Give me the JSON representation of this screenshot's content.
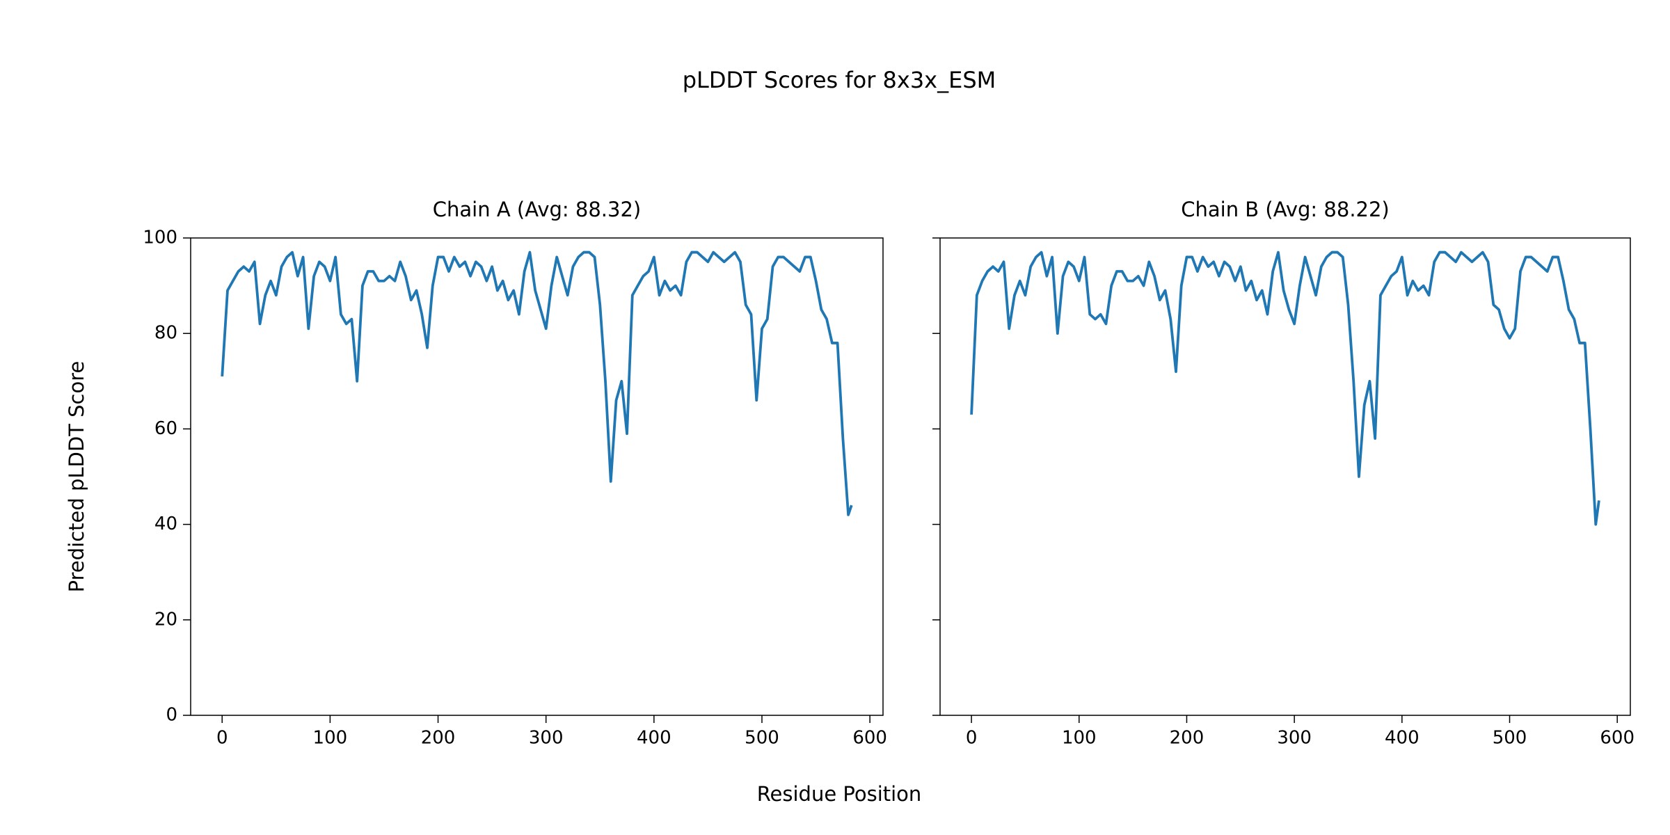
{
  "title": "pLDDT Scores for 8x3x_ESM",
  "xlabel": "Residue Position",
  "ylabel": "Predicted pLDDT Score",
  "chart_data": [
    {
      "type": "line",
      "title": "Chain A (Avg: 88.32)",
      "x": [
        0,
        5,
        10,
        15,
        20,
        25,
        30,
        35,
        40,
        45,
        50,
        55,
        60,
        65,
        70,
        75,
        80,
        85,
        90,
        95,
        100,
        105,
        110,
        115,
        120,
        125,
        130,
        135,
        140,
        145,
        150,
        155,
        160,
        165,
        170,
        175,
        180,
        185,
        190,
        195,
        200,
        205,
        210,
        215,
        220,
        225,
        230,
        235,
        240,
        245,
        250,
        255,
        260,
        265,
        270,
        275,
        280,
        285,
        290,
        295,
        300,
        305,
        310,
        315,
        320,
        325,
        330,
        335,
        340,
        345,
        350,
        355,
        360,
        365,
        370,
        375,
        380,
        385,
        390,
        395,
        400,
        405,
        410,
        415,
        420,
        425,
        430,
        435,
        440,
        445,
        450,
        455,
        460,
        465,
        470,
        475,
        480,
        485,
        490,
        495,
        500,
        505,
        510,
        515,
        520,
        525,
        530,
        535,
        540,
        545,
        550,
        555,
        560,
        565,
        570,
        575,
        580,
        583
      ],
      "series": [
        {
          "color": "#1f77b4",
          "values": [
            71,
            89,
            91,
            93,
            94,
            93,
            95,
            82,
            88,
            91,
            88,
            94,
            96,
            97,
            92,
            96,
            81,
            92,
            95,
            94,
            91,
            96,
            84,
            82,
            83,
            70,
            90,
            93,
            93,
            91,
            91,
            92,
            91,
            95,
            92,
            87,
            89,
            84,
            77,
            90,
            96,
            96,
            93,
            96,
            94,
            95,
            92,
            95,
            94,
            91,
            94,
            89,
            91,
            87,
            89,
            84,
            93,
            97,
            89,
            85,
            81,
            90,
            96,
            92,
            88,
            94,
            96,
            97,
            97,
            96,
            86,
            70,
            49,
            66,
            70,
            59,
            88,
            90,
            92,
            93,
            96,
            88,
            91,
            89,
            90,
            88,
            95,
            97,
            97,
            96,
            95,
            97,
            96,
            95,
            96,
            97,
            95,
            86,
            84,
            66,
            81,
            83,
            94,
            96,
            96,
            95,
            94,
            93,
            96,
            96,
            91,
            85,
            83,
            78,
            78,
            58,
            42,
            44
          ]
        }
      ],
      "xlim": [
        -29.15,
        612.15
      ],
      "ylim": [
        0,
        100
      ],
      "xticks": [
        0,
        100,
        200,
        300,
        400,
        500,
        600
      ],
      "yticks": [
        0,
        20,
        40,
        60,
        80,
        100
      ],
      "ytick_labels": true
    },
    {
      "type": "line",
      "title": "Chain B (Avg: 88.22)",
      "x": [
        0,
        5,
        10,
        15,
        20,
        25,
        30,
        35,
        40,
        45,
        50,
        55,
        60,
        65,
        70,
        75,
        80,
        85,
        90,
        95,
        100,
        105,
        110,
        115,
        120,
        125,
        130,
        135,
        140,
        145,
        150,
        155,
        160,
        165,
        170,
        175,
        180,
        185,
        190,
        195,
        200,
        205,
        210,
        215,
        220,
        225,
        230,
        235,
        240,
        245,
        250,
        255,
        260,
        265,
        270,
        275,
        280,
        285,
        290,
        295,
        300,
        305,
        310,
        315,
        320,
        325,
        330,
        335,
        340,
        345,
        350,
        355,
        360,
        365,
        370,
        375,
        380,
        385,
        390,
        395,
        400,
        405,
        410,
        415,
        420,
        425,
        430,
        435,
        440,
        445,
        450,
        455,
        460,
        465,
        470,
        475,
        480,
        485,
        490,
        495,
        500,
        505,
        510,
        515,
        520,
        525,
        530,
        535,
        540,
        545,
        550,
        555,
        560,
        565,
        570,
        575,
        580,
        583
      ],
      "series": [
        {
          "color": "#1f77b4",
          "values": [
            63,
            88,
            91,
            93,
            94,
            93,
            95,
            81,
            88,
            91,
            88,
            94,
            96,
            97,
            92,
            96,
            80,
            92,
            95,
            94,
            91,
            96,
            84,
            83,
            84,
            82,
            90,
            93,
            93,
            91,
            91,
            92,
            90,
            95,
            92,
            87,
            89,
            83,
            72,
            90,
            96,
            96,
            93,
            96,
            94,
            95,
            92,
            95,
            94,
            91,
            94,
            89,
            91,
            87,
            89,
            84,
            93,
            97,
            89,
            85,
            82,
            90,
            96,
            92,
            88,
            94,
            96,
            97,
            97,
            96,
            86,
            70,
            50,
            65,
            70,
            58,
            88,
            90,
            92,
            93,
            96,
            88,
            91,
            89,
            90,
            88,
            95,
            97,
            97,
            96,
            95,
            97,
            96,
            95,
            96,
            97,
            95,
            86,
            85,
            81,
            79,
            81,
            93,
            96,
            96,
            95,
            94,
            93,
            96,
            96,
            91,
            85,
            83,
            78,
            78,
            60,
            40,
            45
          ]
        }
      ],
      "xlim": [
        -29.15,
        612.15
      ],
      "ylim": [
        0,
        100
      ],
      "xticks": [
        0,
        100,
        200,
        300,
        400,
        500,
        600
      ],
      "yticks": [
        0,
        20,
        40,
        60,
        80,
        100
      ],
      "ytick_labels": false
    }
  ]
}
